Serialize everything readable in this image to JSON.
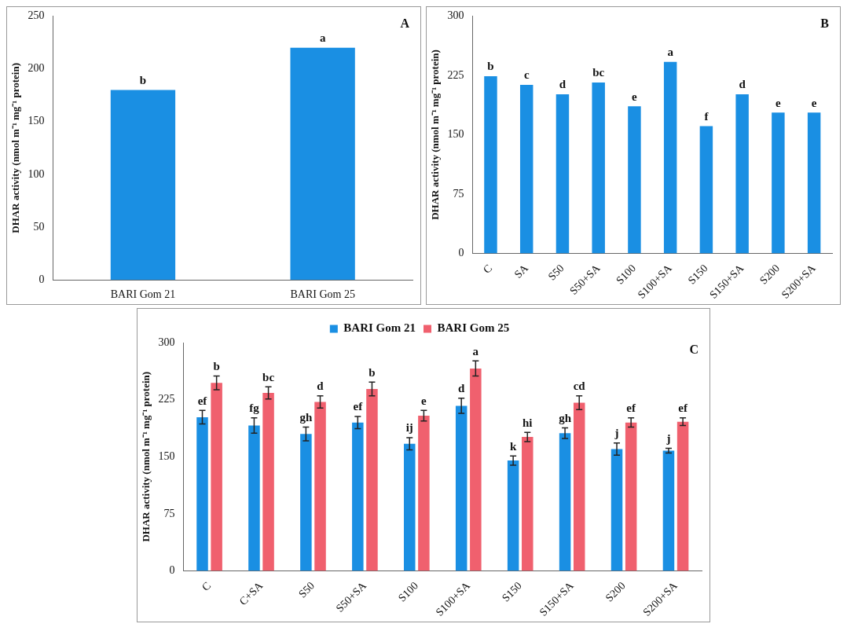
{
  "chart_data": [
    {
      "type": "bar",
      "ylabel": "DHAR activity (nmol m⁻¹ mg⁻¹ protein)",
      "categories": [
        "BARI Gom 21",
        "BARI Gom 25"
      ],
      "values": [
        180,
        220
      ],
      "color": "#1a8fe3",
      "value_labels": [
        "b",
        "a"
      ],
      "ylim": [
        0,
        250
      ],
      "yticks": [
        0,
        50,
        100,
        150,
        200,
        250
      ],
      "grid": false,
      "legend": false,
      "annotations": [
        "A"
      ]
    },
    {
      "type": "bar",
      "ylabel": "DHAR activity (nmol m⁻¹ mg⁻¹ protein)",
      "categories": [
        "C",
        "SA",
        "S50",
        "S50+SA",
        "S100",
        "S100+SA",
        "S150",
        "S150+SA",
        "S200",
        "S200+SA"
      ],
      "values": [
        224,
        213,
        201,
        216,
        186,
        242,
        161,
        201,
        178,
        178
      ],
      "color": "#1a8fe3",
      "value_labels": [
        "b",
        "c",
        "d",
        "bc",
        "e",
        "a",
        "f",
        "d",
        "e",
        "e"
      ],
      "ylim": [
        0,
        300
      ],
      "yticks": [
        0,
        75,
        150,
        225,
        300
      ],
      "grid": false,
      "legend": false,
      "annotations": [
        "B"
      ]
    },
    {
      "type": "bar",
      "ylabel": "DHAR activity (nmol m⁻¹ mg⁻¹ protein)",
      "categories": [
        "C",
        "C+SA",
        "S50",
        "S50+SA",
        "S100",
        "S100+SA",
        "S150",
        "S150+SA",
        "S200",
        "S200+SA"
      ],
      "series": [
        {
          "name": "BARI Gom 21",
          "color": "#1a8fe3",
          "values": [
            202,
            191,
            180,
            195,
            167,
            217,
            145,
            181,
            160,
            158
          ],
          "errors": [
            9,
            10,
            9,
            8,
            8,
            10,
            6,
            7,
            8,
            3
          ],
          "value_labels": [
            "ef",
            "fg",
            "gh",
            "ef",
            "ij",
            "d",
            "k",
            "gh",
            "j",
            "j"
          ]
        },
        {
          "name": "BARI Gom 25",
          "color": "#f0606e",
          "values": [
            247,
            234,
            222,
            239,
            204,
            266,
            176,
            221,
            195,
            196
          ],
          "errors": [
            9,
            8,
            8,
            9,
            7,
            10,
            6,
            9,
            6,
            5
          ],
          "value_labels": [
            "b",
            "bc",
            "d",
            "b",
            "e",
            "a",
            "hi",
            "cd",
            "ef",
            "ef"
          ]
        }
      ],
      "ylim": [
        0,
        300
      ],
      "yticks": [
        0,
        75,
        150,
        225,
        300
      ],
      "grid": false,
      "legend": "top",
      "annotations": [
        "C"
      ]
    }
  ]
}
